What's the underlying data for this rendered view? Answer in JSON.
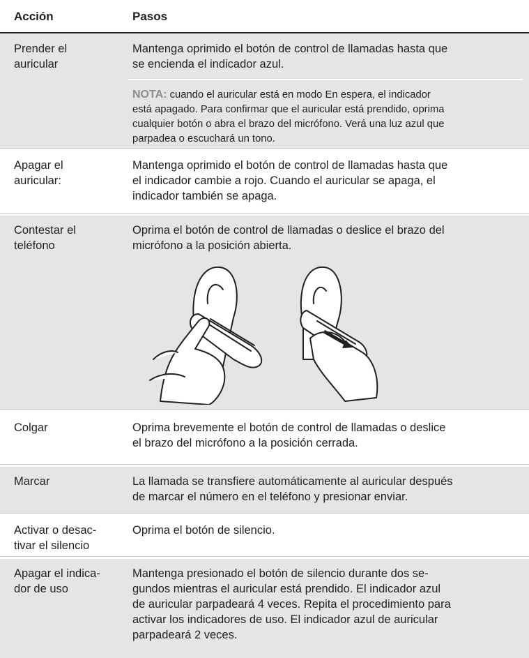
{
  "header": {
    "action": "Acción",
    "steps": "Pasos"
  },
  "rows": [
    {
      "action": [
        "Prender el",
        "auricular"
      ],
      "steps": [
        "Mantenga oprimido el botón de control de llamadas hasta que",
        "se encienda el indicador azul."
      ],
      "note": {
        "label": "NOTA:",
        "lines": [
          "cuando el auricular está en modo En espera, el indicador",
          "está apagado. Para confirmar que el auricular está prendido, oprima",
          "cualquier botón o abra el brazo del micrófono. Verá una luz azul que",
          "parpadea o escuchará un tono."
        ]
      }
    },
    {
      "action": [
        "Apagar el",
        "auricular:"
      ],
      "steps": [
        "Mantenga oprimido el botón de control de llamadas hasta que",
        "el indicador cambie a rojo. Cuando el auricular se apaga, el",
        "indicador también se apaga."
      ]
    },
    {
      "action": [
        "Contestar el",
        "teléfono"
      ],
      "steps": [
        "Oprima el botón de control de llamadas o deslice el brazo del",
        "micrófono a la posición abierta."
      ]
    },
    {
      "action": [
        "Colgar"
      ],
      "steps": [
        "Oprima brevemente el botón de control de llamadas o deslice",
        "el brazo del micrófono a la posición cerrada."
      ]
    },
    {
      "action": [
        "Marcar"
      ],
      "steps": [
        "La llamada se transfiere automáticamente al auricular después",
        "de marcar el número en el teléfono y presionar enviar."
      ]
    },
    {
      "action": [
        "Activar o desac-",
        "tivar el silencio"
      ],
      "steps": [
        "Oprima el botón de silencio."
      ]
    },
    {
      "action": [
        "Apagar el indica-",
        "dor de uso"
      ],
      "steps": [
        "Mantenga presionado el botón de silencio durante dos se-",
        "gundos mientras el auricular está prendido. El indicador azul",
        "de auricular parpadeará 4 veces. Repita el procedimiento para",
        "activar los indicadores de uso. El indicador azul de auricular",
        "parpadeará 2 veces."
      ]
    }
  ]
}
